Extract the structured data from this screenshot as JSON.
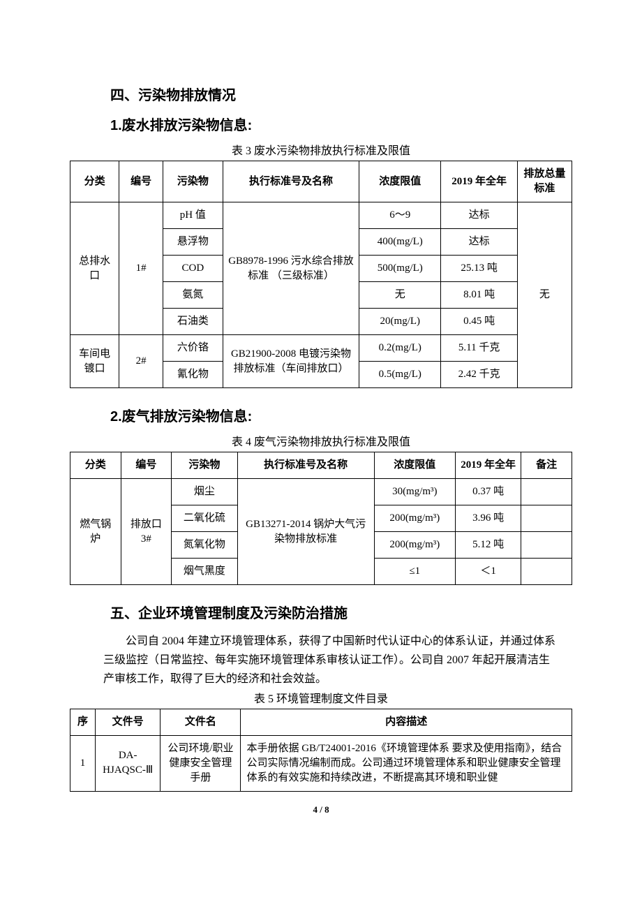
{
  "section4": {
    "heading": "四、污染物排放情况",
    "sub1": "1.废水排放污染物信息:",
    "sub2": "2.废气排放污染物信息:"
  },
  "table3": {
    "caption": "表 3   废水污染物排放执行标准及限值",
    "headers": [
      "分类",
      "编号",
      "污染物",
      "执行标准号及名称",
      "浓度限值",
      "2019 年全年",
      "排放总量标准"
    ],
    "group1_cat": "总排水口",
    "group1_no": "1#",
    "group1_std": "GB8978-1996\n污水综合排放标准\n（三级标准）",
    "group2_cat": "车间电镀口",
    "group2_no": "2#",
    "group2_std": "GB21900-2008\n电镀污染物排放标准（车间排放口）",
    "total_std": "无",
    "rows": [
      {
        "pollutant": "pH 值",
        "limit": "6～9",
        "year": "达标"
      },
      {
        "pollutant": "悬浮物",
        "limit": "400(mg/L)",
        "year": "达标"
      },
      {
        "pollutant": "COD",
        "limit": "500(mg/L)",
        "year": "25.13 吨"
      },
      {
        "pollutant": "氨氮",
        "limit": "无",
        "year": "8.01 吨"
      },
      {
        "pollutant": "石油类",
        "limit": "20(mg/L)",
        "year": "0.45 吨"
      },
      {
        "pollutant": "六价铬",
        "limit": "0.2(mg/L)",
        "year": "5.11 千克"
      },
      {
        "pollutant": "氰化物",
        "limit": "0.5(mg/L)",
        "year": "2.42 千克"
      }
    ]
  },
  "table4": {
    "caption": "表 4   废气污染物排放执行标准及限值",
    "headers": [
      "分类",
      "编号",
      "污染物",
      "执行标准号及名称",
      "浓度限值",
      "2019 年全年",
      "备注"
    ],
    "group_cat": "燃气锅炉",
    "group_no": "排放口 3#",
    "group_std": "GB13271-2014 锅炉大气污染物排放标准",
    "rows": [
      {
        "pollutant": "烟尘",
        "limit": "30(mg/m³)",
        "year": "0.37 吨",
        "remark": ""
      },
      {
        "pollutant": "二氧化硫",
        "limit": "200(mg/m³)",
        "year": "3.96 吨",
        "remark": ""
      },
      {
        "pollutant": "氮氧化物",
        "limit": "200(mg/m³)",
        "year": "5.12 吨",
        "remark": ""
      },
      {
        "pollutant": "烟气黑度",
        "limit": "≤1",
        "year": "＜1",
        "remark": ""
      }
    ]
  },
  "section5": {
    "heading": "五、企业环境管理制度及污染防治措施",
    "para": "公司自 2004 年建立环境管理体系，获得了中国新时代认证中心的体系认证，并通过体系三级监控（日常监控、每年实施环境管理体系审核认证工作）。公司自 2007 年起开展清洁生产审核工作，取得了巨大的经济和社会效益。"
  },
  "table5": {
    "caption": "表 5   环境管理制度文件目录",
    "headers": [
      "序",
      "文件号",
      "文件名",
      "内容描述"
    ],
    "rows": [
      {
        "seq": "1",
        "docno": "DA-HJAQSC-Ⅲ",
        "docname": "公司环境/职业健康安全管理手册",
        "desc": "本手册依据 GB/T24001-2016《环境管理体系  要求及使用指南》，结合公司实际情况编制而成。公司通过环境管理体系和职业健康安全管理体系的有效实施和持续改进，不断提高其环境和职业健"
      }
    ]
  },
  "page": {
    "current": "4",
    "total": "8",
    "sep": " / "
  }
}
